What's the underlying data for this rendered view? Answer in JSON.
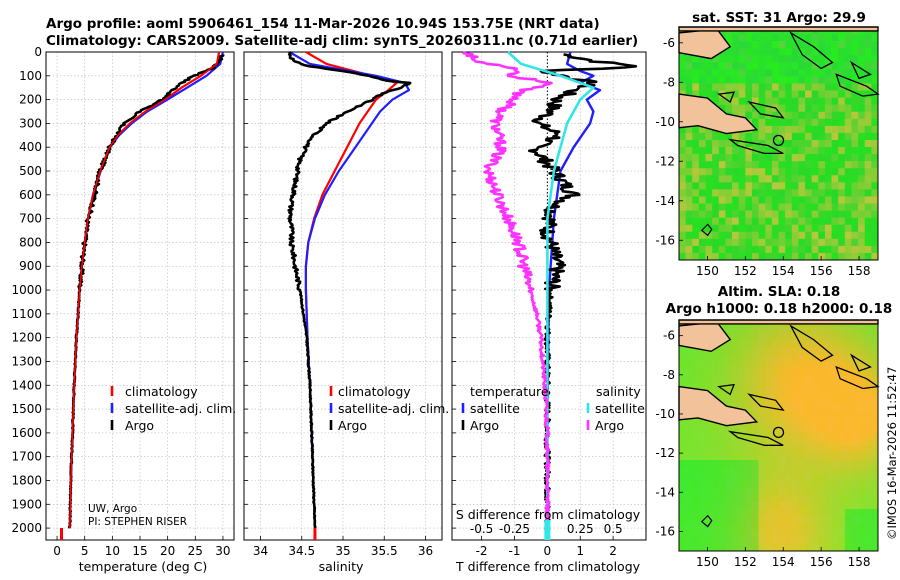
{
  "header": {
    "line1": "Argo profile: aoml 5906461_154 11-Mar-2026 10.94S 153.75E (NRT data)",
    "line2": "Climatology: CARS2009. Satellite-adj clim: synTS_20260311.nc (0.71d earlier)"
  },
  "colors": {
    "climatology": "#ff0000",
    "satellite_clim": "#1f1fff",
    "argo": "#000000",
    "sat_salinity": "#33e6e6",
    "argo_salinity": "#ff33ff",
    "land": "#f2c29b"
  },
  "depth_axis": {
    "ticks": [
      "0",
      "100",
      "200",
      "300",
      "400",
      "500",
      "600",
      "700",
      "800",
      "900",
      "1000",
      "1100",
      "1200",
      "1300",
      "1400",
      "1500",
      "1600",
      "1700",
      "1800",
      "1900",
      "2000"
    ]
  },
  "chart_data": [
    {
      "id": "temperature",
      "type": "line",
      "xlabel": "temperature (deg C)",
      "xlim": [
        -2,
        32
      ],
      "xticks": [
        "0",
        "5",
        "10",
        "15",
        "20",
        "25",
        "30"
      ],
      "ylim": [
        0,
        2050
      ],
      "legend": [
        "climatology",
        "satellite-adj. clim.",
        "Argo"
      ],
      "series": [
        {
          "name": "climatology",
          "depth": [
            0,
            50,
            100,
            150,
            200,
            250,
            300,
            350,
            400,
            500,
            600,
            700,
            800,
            900,
            1000,
            1200,
            1400,
            1600,
            1800,
            2000
          ],
          "values": [
            29.3,
            28.9,
            26.0,
            22.5,
            19.5,
            16.0,
            13.2,
            11.0,
            9.5,
            7.8,
            6.5,
            5.6,
            5.0,
            4.5,
            4.1,
            3.5,
            3.1,
            2.8,
            2.5,
            2.3
          ]
        },
        {
          "name": "satellite-adj. clim.",
          "depth": [
            0,
            50,
            100,
            150,
            200,
            250,
            300,
            350,
            400,
            500,
            600,
            700,
            800,
            900,
            1000,
            1200,
            1400,
            1600,
            1800,
            2000
          ],
          "values": [
            30.0,
            29.5,
            27.0,
            23.5,
            20.0,
            16.3,
            13.5,
            11.2,
            9.6,
            7.9,
            6.5,
            5.6,
            5.0,
            4.5,
            4.1,
            3.5,
            3.1,
            2.8,
            2.5,
            2.3
          ]
        },
        {
          "name": "Argo",
          "depth": [
            10,
            40,
            70,
            100,
            130,
            160,
            190,
            220,
            250,
            280,
            300,
            350,
            400,
            500,
            600,
            650,
            700,
            800,
            900,
            1000,
            1200,
            1400,
            1600,
            1800,
            2000
          ],
          "values": [
            29.8,
            29.4,
            28.0,
            24.8,
            22.5,
            21.0,
            19.5,
            17.5,
            15.0,
            13.2,
            12.0,
            10.8,
            9.5,
            7.8,
            6.8,
            6.3,
            5.6,
            5.0,
            4.5,
            4.1,
            3.5,
            3.1,
            2.8,
            2.5,
            2.3
          ]
        }
      ]
    },
    {
      "id": "salinity",
      "type": "line",
      "xlabel": "salinity",
      "xlim": [
        33.8,
        36.2
      ],
      "xticks": [
        "34",
        "34.5",
        "35",
        "35.5",
        "36"
      ],
      "ylim": [
        0,
        2050
      ],
      "legend": [
        "climatology",
        "satellite-adj. clim.",
        "Argo"
      ],
      "series": [
        {
          "name": "climatology",
          "depth": [
            0,
            50,
            100,
            130,
            160,
            200,
            250,
            300,
            400,
            500,
            600,
            700,
            800,
            900,
            1000,
            1200,
            1400,
            1600,
            1800,
            2000
          ],
          "values": [
            34.55,
            34.8,
            35.35,
            35.65,
            35.55,
            35.4,
            35.3,
            35.2,
            35.05,
            34.9,
            34.75,
            34.65,
            34.58,
            34.55,
            34.55,
            34.57,
            34.6,
            34.62,
            34.64,
            34.66
          ]
        },
        {
          "name": "satellite-adj. clim.",
          "depth": [
            0,
            50,
            100,
            130,
            160,
            200,
            250,
            300,
            400,
            500,
            600,
            700,
            800,
            900,
            1000,
            1200,
            1400,
            1600,
            1800,
            2000
          ],
          "values": [
            34.35,
            34.6,
            35.4,
            35.75,
            35.8,
            35.6,
            35.45,
            35.35,
            35.15,
            34.95,
            34.78,
            34.66,
            34.58,
            34.55,
            34.55,
            34.57,
            34.6,
            34.62,
            34.64,
            34.66
          ]
        },
        {
          "name": "Argo",
          "depth": [
            0,
            40,
            60,
            80,
            100,
            120,
            130,
            150,
            170,
            200,
            250,
            300,
            350,
            400,
            450,
            500,
            550,
            600,
            650,
            700,
            750,
            800,
            850,
            900,
            950,
            1000,
            1100,
            1200,
            1400,
            1600,
            1800,
            2000
          ],
          "values": [
            34.35,
            34.4,
            34.6,
            35.0,
            35.3,
            35.55,
            35.8,
            35.7,
            35.5,
            35.35,
            35.05,
            34.8,
            34.65,
            34.55,
            34.48,
            34.45,
            34.42,
            34.4,
            34.37,
            34.36,
            34.38,
            34.37,
            34.4,
            34.42,
            34.45,
            34.48,
            34.52,
            34.56,
            34.6,
            34.62,
            34.64,
            34.66
          ]
        }
      ]
    },
    {
      "id": "difference",
      "type": "line",
      "xlabel": "T difference from climatology",
      "xlabel_top": "S difference from climatology",
      "xlim": [
        -2.9,
        3.0
      ],
      "xticks": [
        "-2",
        "-1",
        "0",
        "1",
        "2"
      ],
      "xticks_salinity": [
        "-0.5",
        "-0.25",
        "0",
        "0.25",
        "0.5"
      ],
      "ylim": [
        0,
        2050
      ],
      "legend_temperature_title": "temperature",
      "legend_salinity_title": "salinity",
      "legend_entries": [
        "satellite",
        "Argo"
      ],
      "series": [
        {
          "name": "temperature satellite",
          "depth": [
            0,
            50,
            80,
            100,
            130,
            160,
            200,
            250,
            300,
            400,
            500,
            700,
            1000,
            1500,
            2000
          ],
          "values": [
            0.7,
            0.6,
            1.0,
            1.4,
            1.0,
            1.6,
            1.2,
            1.4,
            1.3,
            0.8,
            0.4,
            0.2,
            0.05,
            0.0,
            0.0
          ]
        },
        {
          "name": "temperature Argo",
          "depth": [
            10,
            40,
            60,
            70,
            80,
            100,
            130,
            160,
            200,
            250,
            300,
            350,
            400,
            500,
            600,
            650,
            700,
            750,
            800,
            900,
            1000,
            1200,
            1500,
            2000
          ],
          "values": [
            0.5,
            1.5,
            2.8,
            1.6,
            -0.2,
            0.5,
            1.4,
            0.8,
            0.3,
            0.1,
            -0.3,
            0.4,
            -0.4,
            0.2,
            0.8,
            0.2,
            0.1,
            0.0,
            0.1,
            0.3,
            0.1,
            0.0,
            0.0,
            0.0
          ]
        },
        {
          "name": "salinity satellite",
          "depth": [
            0,
            50,
            100,
            150,
            200,
            300,
            400,
            500,
            700,
            1000,
            2000
          ],
          "values": [
            -0.3,
            -0.2,
            0.1,
            0.35,
            0.25,
            0.15,
            0.1,
            0.05,
            0.0,
            0.0,
            0.0
          ]
        },
        {
          "name": "salinity Argo",
          "depth": [
            0,
            40,
            60,
            80,
            100,
            130,
            160,
            200,
            250,
            300,
            400,
            500,
            600,
            700,
            800,
            900,
            1000,
            1100,
            1200,
            1400,
            1600,
            1800,
            2000
          ],
          "values": [
            -0.6,
            -0.55,
            -0.3,
            -0.2,
            -0.3,
            0.05,
            -0.2,
            -0.25,
            -0.35,
            -0.4,
            -0.35,
            -0.45,
            -0.38,
            -0.3,
            -0.22,
            -0.18,
            -0.13,
            -0.08,
            -0.05,
            -0.02,
            0.0,
            0.0,
            0.0
          ]
        }
      ]
    },
    {
      "id": "sst_map",
      "type": "heatmap",
      "title": "sat. SST: 31 Argo: 29.9",
      "xticks": [
        "150",
        "152",
        "154",
        "156",
        "158"
      ],
      "yticks": [
        "-6",
        "-8",
        "-10",
        "-12",
        "-14",
        "-16"
      ]
    },
    {
      "id": "sla_map",
      "type": "heatmap",
      "title_line1": "Altim. SLA: 0.18",
      "title_line2": "Argo h1000: 0.18 h2000: 0.18",
      "xticks": [
        "150",
        "152",
        "154",
        "156",
        "158"
      ],
      "yticks": [
        "-6",
        "-8",
        "-10",
        "-12",
        "-14",
        "-16"
      ]
    }
  ],
  "annotations": {
    "credit_line1": "UW, Argo",
    "credit_line2": "PI: STEPHEN RISER",
    "watermark": "©IMOS 16-Mar-2026 11:52:47"
  }
}
